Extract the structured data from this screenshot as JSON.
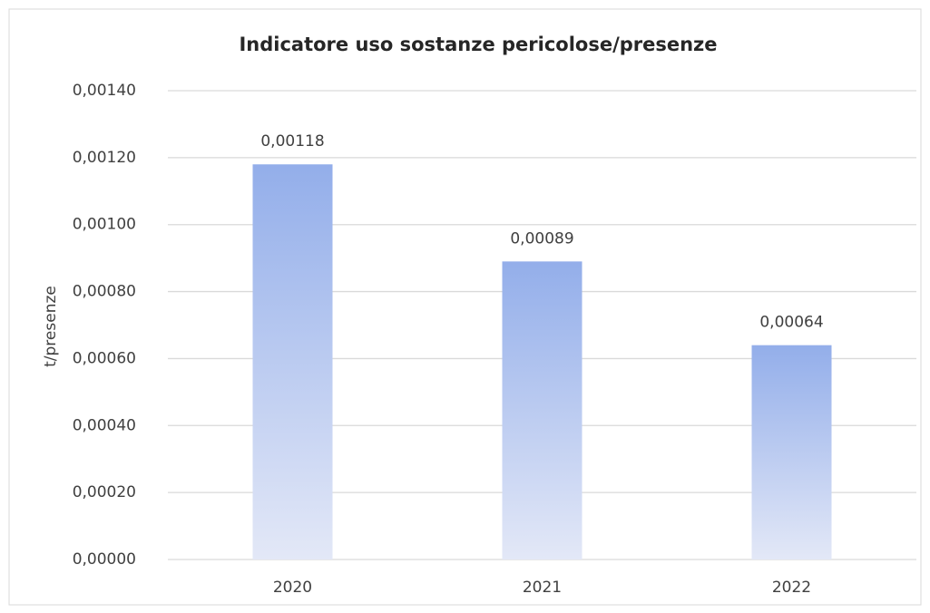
{
  "chart_data": {
    "type": "bar",
    "title": "Indicatore uso sostanze pericolose/presenze",
    "y_label": "t/presenze",
    "categories": [
      "2020",
      "2021",
      "2022"
    ],
    "values": [
      0.00118,
      0.00089,
      0.00064
    ],
    "value_labels": [
      "0,00118",
      "0,00089",
      "0,00064"
    ],
    "color": "#93aeea",
    "ylim": [
      0,
      0.0014
    ],
    "yticks": [
      {
        "value": 0,
        "label": "0,00000"
      },
      {
        "value": 0.0002,
        "label": "0,00020"
      },
      {
        "value": 0.0004,
        "label": "0,00040"
      },
      {
        "value": 0.0006,
        "label": "0,00060"
      },
      {
        "value": 0.0008,
        "label": "0,00080"
      },
      {
        "value": 0.001,
        "label": "0,00100"
      },
      {
        "value": 0.0012,
        "label": "0,00120"
      },
      {
        "value": 0.0014,
        "label": "0,00140"
      }
    ],
    "grid": true
  }
}
